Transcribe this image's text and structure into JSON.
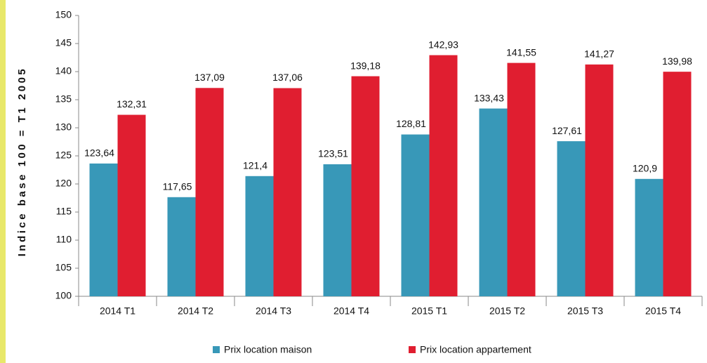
{
  "chart_data": {
    "type": "bar",
    "y_label": "Indice base 100 = T1 2005",
    "categories": [
      "2014 T1",
      "2014 T2",
      "2014 T3",
      "2014 T4",
      "2015 T1",
      "2015 T2",
      "2015 T3",
      "2015 T4"
    ],
    "series": [
      {
        "name": "Prix location maison",
        "color": "#3898b8",
        "values": [
          123.64,
          117.65,
          121.4,
          123.51,
          128.81,
          133.43,
          127.61,
          120.9
        ],
        "value_labels": [
          "123,64",
          "117,65",
          "121,4",
          "123,51",
          "128,81",
          "133,43",
          "127,61",
          "120,9"
        ]
      },
      {
        "name": "Prix location appartement",
        "color": "#e01e30",
        "values": [
          132.31,
          137.09,
          137.06,
          139.18,
          142.93,
          141.55,
          141.27,
          139.98
        ],
        "value_labels": [
          "132,31",
          "137,09",
          "137,06",
          "139,18",
          "142,93",
          "141,55",
          "141,27",
          "139,98"
        ]
      }
    ],
    "ylim": [
      100,
      150
    ],
    "yticks": [
      100,
      105,
      110,
      115,
      120,
      125,
      130,
      135,
      140,
      145,
      150
    ],
    "grid": false,
    "legend": "bottom"
  }
}
